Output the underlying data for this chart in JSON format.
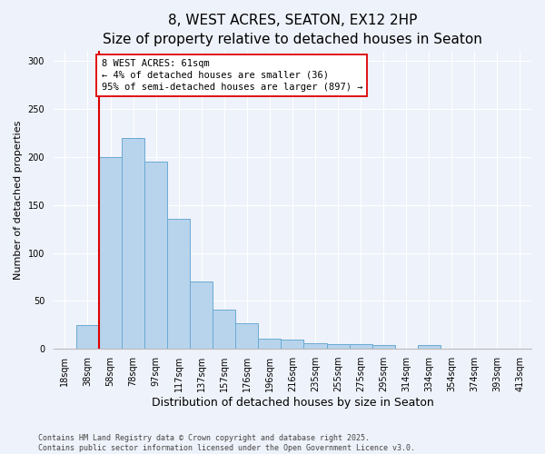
{
  "title": "8, WEST ACRES, SEATON, EX12 2HP",
  "subtitle": "Size of property relative to detached houses in Seaton",
  "xlabel": "Distribution of detached houses by size in Seaton",
  "ylabel": "Number of detached properties",
  "categories": [
    "18sqm",
    "38sqm",
    "58sqm",
    "78sqm",
    "97sqm",
    "117sqm",
    "137sqm",
    "157sqm",
    "176sqm",
    "196sqm",
    "216sqm",
    "235sqm",
    "255sqm",
    "275sqm",
    "295sqm",
    "314sqm",
    "334sqm",
    "354sqm",
    "374sqm",
    "393sqm",
    "413sqm"
  ],
  "values": [
    0,
    25,
    200,
    220,
    195,
    135,
    70,
    41,
    27,
    11,
    10,
    6,
    5,
    5,
    4,
    0,
    4,
    0,
    0,
    0,
    0
  ],
  "bar_color": "#b8d4ec",
  "bar_edge_color": "#6aaad4",
  "property_line_index": 2,
  "annotation_text": "8 WEST ACRES: 61sqm\n← 4% of detached houses are smaller (36)\n95% of semi-detached houses are larger (897) →",
  "annotation_box_color": "#ffffff",
  "annotation_box_edge_color": "#dd0000",
  "property_line_color": "#dd0000",
  "ylim": [
    0,
    310
  ],
  "yticks": [
    0,
    50,
    100,
    150,
    200,
    250,
    300
  ],
  "footer1": "Contains HM Land Registry data © Crown copyright and database right 2025.",
  "footer2": "Contains public sector information licensed under the Open Government Licence v3.0.",
  "bg_color": "#eef2fa",
  "title_fontsize": 11,
  "subtitle_fontsize": 9.5,
  "axis_label_fontsize": 8,
  "tick_fontsize": 7,
  "footer_fontsize": 6,
  "annotation_fontsize": 7.5
}
